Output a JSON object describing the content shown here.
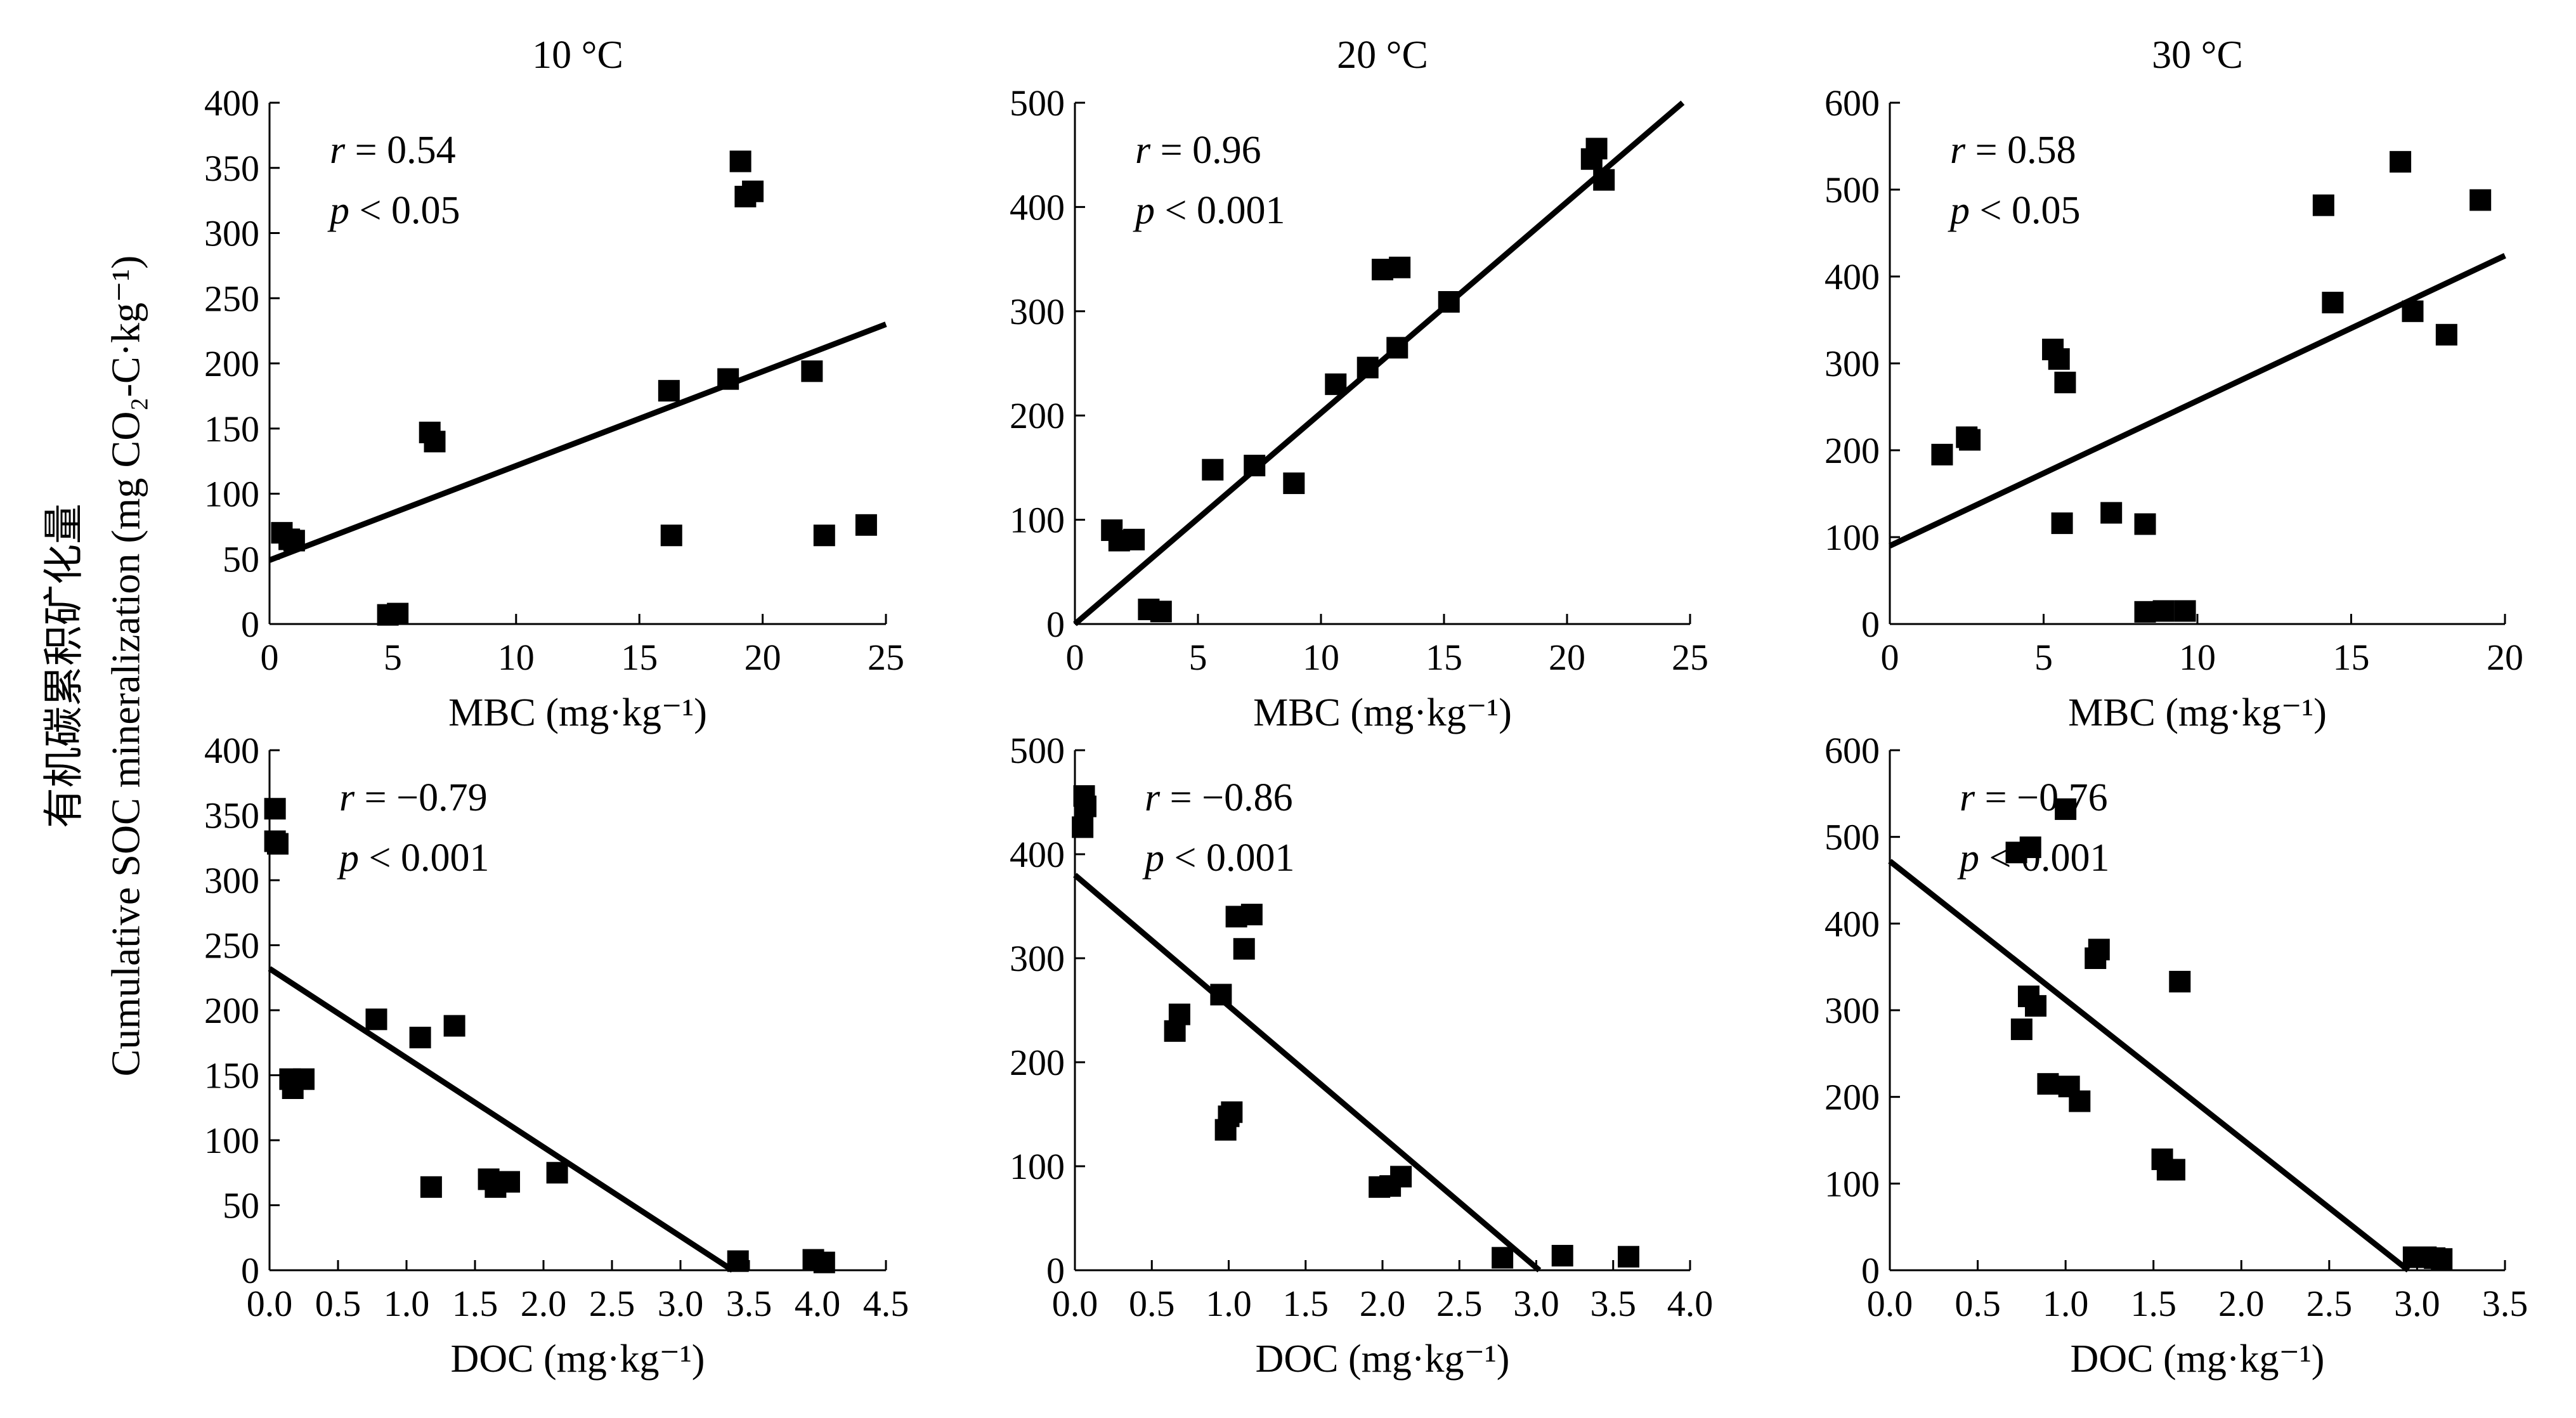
{
  "figure": {
    "ylabel_cn": "有机碳累积矿化量",
    "ylabel_en": "Cumulative SOC mineralization (mg CO₂-C·kg⁻¹)"
  },
  "chart_data": [
    {
      "type": "scatter",
      "id": "mbc10",
      "title": "10 °C",
      "xlabel": "MBC (mg·kg⁻¹)",
      "xlim": [
        0,
        25
      ],
      "ylim": [
        0,
        400
      ],
      "xticks": [
        0,
        5,
        10,
        15,
        20,
        25
      ],
      "yticks": [
        0,
        50,
        100,
        150,
        200,
        250,
        300,
        350,
        400
      ],
      "xtick_labels": [
        "0",
        "5",
        "10",
        "15",
        "20",
        "25"
      ],
      "ytick_labels": [
        "0",
        "50",
        "100",
        "150",
        "200",
        "250",
        "300",
        "350",
        "400"
      ],
      "annotation": {
        "r_label": "r",
        "r_value": "= 0.54",
        "p_label": "p",
        "p_value": "< 0.05"
      },
      "fit_line": [
        [
          0,
          49
        ],
        [
          25,
          230
        ]
      ],
      "points": [
        [
          0.5,
          70
        ],
        [
          0.8,
          65
        ],
        [
          1.0,
          64
        ],
        [
          4.8,
          7
        ],
        [
          5.2,
          8
        ],
        [
          6.5,
          147
        ],
        [
          6.7,
          140
        ],
        [
          16.2,
          179
        ],
        [
          16.3,
          68
        ],
        [
          18.6,
          188
        ],
        [
          19.1,
          355
        ],
        [
          19.3,
          328
        ],
        [
          19.6,
          332
        ],
        [
          22.0,
          194
        ],
        [
          22.5,
          68
        ],
        [
          24.2,
          76
        ]
      ]
    },
    {
      "type": "scatter",
      "id": "mbc20",
      "title": "20 °C",
      "xlabel": "MBC (mg·kg⁻¹)",
      "xlim": [
        0,
        25
      ],
      "ylim": [
        0,
        500
      ],
      "xticks": [
        0,
        5,
        10,
        15,
        20,
        25
      ],
      "yticks": [
        0,
        100,
        200,
        300,
        400,
        500
      ],
      "xtick_labels": [
        "0",
        "5",
        "10",
        "15",
        "20",
        "25"
      ],
      "ytick_labels": [
        "0",
        "100",
        "200",
        "300",
        "400",
        "500"
      ],
      "annotation": {
        "r_label": "r",
        "r_value": "= 0.96",
        "p_label": "p",
        "p_value": "< 0.001"
      },
      "fit_line": [
        [
          0,
          0
        ],
        [
          24.7,
          500
        ]
      ],
      "points": [
        [
          1.5,
          90
        ],
        [
          1.8,
          80
        ],
        [
          2.4,
          81
        ],
        [
          3.0,
          14
        ],
        [
          3.5,
          12
        ],
        [
          5.6,
          148
        ],
        [
          7.3,
          152
        ],
        [
          8.9,
          135
        ],
        [
          10.6,
          230
        ],
        [
          11.9,
          246
        ],
        [
          12.5,
          340
        ],
        [
          13.2,
          342
        ],
        [
          13.1,
          265
        ],
        [
          15.2,
          309
        ],
        [
          21.0,
          446
        ],
        [
          21.2,
          456
        ],
        [
          21.5,
          426
        ]
      ]
    },
    {
      "type": "scatter",
      "id": "mbc30",
      "title": "30 °C",
      "xlabel": "MBC (mg·kg⁻¹)",
      "xlim": [
        0,
        20
      ],
      "ylim": [
        0,
        600
      ],
      "xticks": [
        0,
        5,
        10,
        15,
        20
      ],
      "yticks": [
        0,
        100,
        200,
        300,
        400,
        500,
        600
      ],
      "xtick_labels": [
        "0",
        "5",
        "10",
        "15",
        "20"
      ],
      "ytick_labels": [
        "0",
        "100",
        "200",
        "300",
        "400",
        "500",
        "600"
      ],
      "annotation": {
        "r_label": "r",
        "r_value": "= 0.58",
        "p_label": "p",
        "p_value": "< 0.05"
      },
      "fit_line": [
        [
          0,
          90
        ],
        [
          20,
          424
        ]
      ],
      "points": [
        [
          1.7,
          195
        ],
        [
          2.5,
          215
        ],
        [
          2.6,
          212
        ],
        [
          5.3,
          316
        ],
        [
          5.5,
          305
        ],
        [
          5.7,
          278
        ],
        [
          5.6,
          116
        ],
        [
          7.2,
          128
        ],
        [
          8.3,
          115
        ],
        [
          8.3,
          14
        ],
        [
          8.9,
          15
        ],
        [
          9.6,
          15
        ],
        [
          14.1,
          482
        ],
        [
          14.4,
          370
        ],
        [
          16.6,
          532
        ],
        [
          17.0,
          360
        ],
        [
          18.1,
          333
        ],
        [
          19.2,
          488
        ]
      ]
    },
    {
      "type": "scatter",
      "id": "doc10",
      "title": "",
      "xlabel": "DOC (mg·kg⁻¹)",
      "xlim": [
        0,
        4.5
      ],
      "ylim": [
        0,
        400
      ],
      "xticks": [
        0,
        0.5,
        1,
        1.5,
        2,
        2.5,
        3,
        3.5,
        4,
        4.5
      ],
      "yticks": [
        0,
        50,
        100,
        150,
        200,
        250,
        300,
        350,
        400
      ],
      "xtick_labels": [
        "0.0",
        "0.5",
        "1.0",
        "1.5",
        "2.0",
        "2.5",
        "3.0",
        "3.5",
        "4.0",
        "4.5"
      ],
      "ytick_labels": [
        "0",
        "50",
        "100",
        "150",
        "200",
        "250",
        "300",
        "350",
        "400"
      ],
      "annotation": {
        "r_label": "r",
        "r_value": "= −0.79",
        "p_label": "p",
        "p_value": "< 0.001"
      },
      "fit_line": [
        [
          0,
          232
        ],
        [
          3.38,
          0
        ]
      ],
      "points": [
        [
          0.04,
          355
        ],
        [
          0.04,
          330
        ],
        [
          0.06,
          328
        ],
        [
          0.15,
          147
        ],
        [
          0.17,
          140
        ],
        [
          0.25,
          147
        ],
        [
          0.78,
          193
        ],
        [
          1.1,
          179
        ],
        [
          1.18,
          64
        ],
        [
          1.35,
          188
        ],
        [
          1.6,
          70
        ],
        [
          1.65,
          64
        ],
        [
          1.75,
          68
        ],
        [
          2.1,
          75
        ],
        [
          3.42,
          7
        ],
        [
          3.97,
          8
        ],
        [
          4.05,
          6
        ]
      ]
    },
    {
      "type": "scatter",
      "id": "doc20",
      "title": "",
      "xlabel": "DOC (mg·kg⁻¹)",
      "xlim": [
        0,
        4
      ],
      "ylim": [
        0,
        500
      ],
      "xticks": [
        0,
        0.5,
        1,
        1.5,
        2,
        2.5,
        3,
        3.5,
        4
      ],
      "yticks": [
        0,
        100,
        200,
        300,
        400,
        500
      ],
      "xtick_labels": [
        "0.0",
        "0.5",
        "1.0",
        "1.5",
        "2.0",
        "2.5",
        "3.0",
        "3.5",
        "4.0"
      ],
      "ytick_labels": [
        "0",
        "100",
        "200",
        "300",
        "400",
        "500"
      ],
      "annotation": {
        "r_label": "r",
        "r_value": "= −0.86",
        "p_label": "p",
        "p_value": "< 0.001"
      },
      "fit_line": [
        [
          0,
          380
        ],
        [
          3.02,
          0
        ]
      ],
      "points": [
        [
          0.06,
          456
        ],
        [
          0.07,
          446
        ],
        [
          0.05,
          426
        ],
        [
          0.65,
          230
        ],
        [
          0.68,
          246
        ],
        [
          0.95,
          265
        ],
        [
          0.98,
          135
        ],
        [
          1.0,
          148
        ],
        [
          1.02,
          152
        ],
        [
          1.05,
          340
        ],
        [
          1.1,
          309
        ],
        [
          1.15,
          342
        ],
        [
          1.98,
          80
        ],
        [
          2.05,
          81
        ],
        [
          2.12,
          90
        ],
        [
          2.78,
          12
        ],
        [
          3.17,
          14
        ],
        [
          3.6,
          13
        ]
      ]
    },
    {
      "type": "scatter",
      "id": "doc30",
      "title": "",
      "xlabel": "DOC (mg·kg⁻¹)",
      "xlim": [
        0,
        3.5
      ],
      "ylim": [
        0,
        600
      ],
      "xticks": [
        0,
        0.5,
        1,
        1.5,
        2,
        2.5,
        3,
        3.5
      ],
      "yticks": [
        0,
        100,
        200,
        300,
        400,
        500,
        600
      ],
      "xtick_labels": [
        "0.0",
        "0.5",
        "1.0",
        "1.5",
        "2.0",
        "2.5",
        "3.0",
        "3.5"
      ],
      "ytick_labels": [
        "0",
        "100",
        "200",
        "300",
        "400",
        "500",
        "600"
      ],
      "annotation": {
        "r_label": "r",
        "r_value": "= −0.76",
        "p_label": "p",
        "p_value": "< 0.001"
      },
      "fit_line": [
        [
          0,
          472
        ],
        [
          2.95,
          0
        ]
      ],
      "points": [
        [
          0.72,
          482
        ],
        [
          0.8,
          488
        ],
        [
          1.0,
          532
        ],
        [
          0.75,
          278
        ],
        [
          0.79,
          316
        ],
        [
          0.83,
          305
        ],
        [
          0.9,
          215
        ],
        [
          1.02,
          212
        ],
        [
          1.08,
          195
        ],
        [
          1.17,
          360
        ],
        [
          1.19,
          370
        ],
        [
          1.55,
          128
        ],
        [
          1.58,
          116
        ],
        [
          1.62,
          116
        ],
        [
          1.65,
          333
        ],
        [
          2.98,
          15
        ],
        [
          3.05,
          15
        ],
        [
          3.1,
          14
        ],
        [
          3.14,
          13
        ]
      ]
    }
  ]
}
